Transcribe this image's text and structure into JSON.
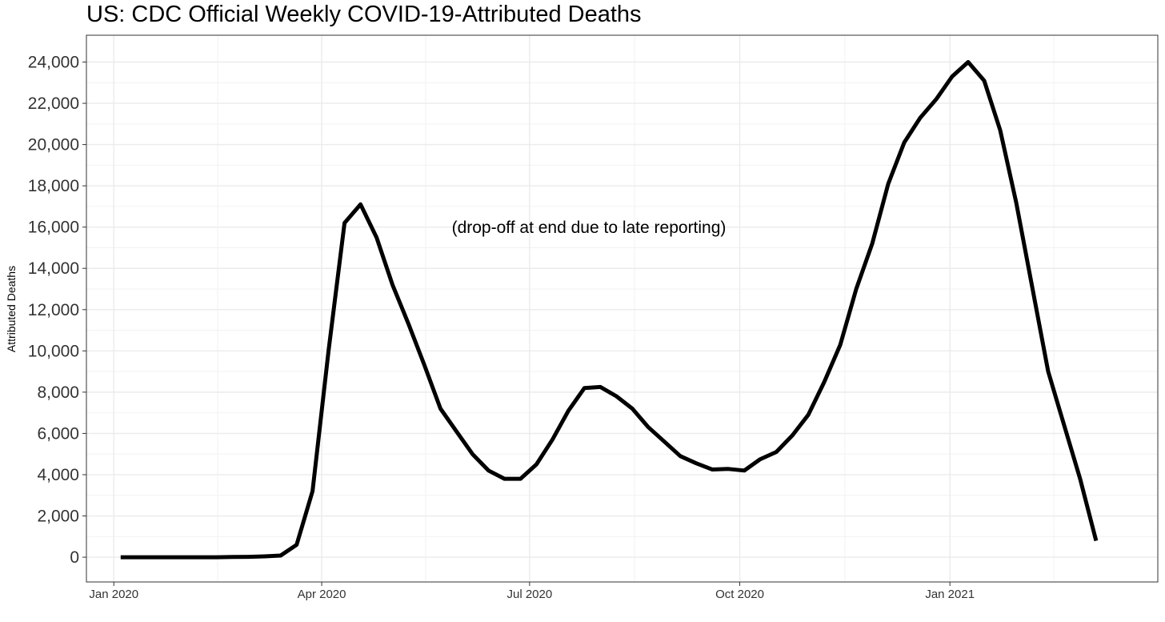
{
  "chart_data": {
    "type": "line",
    "title": "US: CDC Official Weekly COVID-19-Attributed Deaths",
    "xlabel": "",
    "ylabel": "Attributed Deaths",
    "annotation": "(drop-off at end due to late reporting)",
    "ylim": [
      -1200,
      25300
    ],
    "xlim": [
      "2019-12-20",
      "2021-04-02"
    ],
    "yticks": [
      0,
      2000,
      4000,
      6000,
      8000,
      10000,
      12000,
      14000,
      16000,
      18000,
      20000,
      22000,
      24000
    ],
    "ytick_labels": [
      "0",
      "2,000",
      "4,000",
      "6,000",
      "8,000",
      "10,000",
      "12,000",
      "14,000",
      "16,000",
      "18,000",
      "20,000",
      "22,000",
      "24,000"
    ],
    "xticks": [
      "2020-01-01",
      "2020-04-01",
      "2020-07-01",
      "2020-10-01",
      "2021-01-01"
    ],
    "xtick_labels": [
      "Jan 2020",
      "Apr 2020",
      "Jul 2020",
      "Oct 2020",
      "Jan 2021"
    ],
    "grid": true,
    "line_color": "#000000",
    "series": [
      {
        "x": [
          "2020-01-04",
          "2020-01-11",
          "2020-01-18",
          "2020-01-25",
          "2020-02-01",
          "2020-02-08",
          "2020-02-15",
          "2020-02-22",
          "2020-02-29",
          "2020-03-07",
          "2020-03-14",
          "2020-03-21",
          "2020-03-28",
          "2020-04-04",
          "2020-04-11",
          "2020-04-18",
          "2020-04-25",
          "2020-05-02",
          "2020-05-09",
          "2020-05-16",
          "2020-05-23",
          "2020-05-30",
          "2020-06-06",
          "2020-06-13",
          "2020-06-20",
          "2020-06-27",
          "2020-07-04",
          "2020-07-11",
          "2020-07-18",
          "2020-07-25",
          "2020-08-01",
          "2020-08-08",
          "2020-08-15",
          "2020-08-22",
          "2020-08-29",
          "2020-09-05",
          "2020-09-12",
          "2020-09-19",
          "2020-09-26",
          "2020-10-03",
          "2020-10-10",
          "2020-10-17",
          "2020-10-24",
          "2020-10-31",
          "2020-11-07",
          "2020-11-14",
          "2020-11-21",
          "2020-11-28",
          "2020-12-05",
          "2020-12-12",
          "2020-12-19",
          "2020-12-26",
          "2021-01-02",
          "2021-01-09",
          "2021-01-16",
          "2021-01-23",
          "2021-01-30",
          "2021-02-06",
          "2021-02-13",
          "2021-02-20",
          "2021-02-27",
          "2021-03-06"
        ],
        "y": [
          0,
          0,
          0,
          0,
          0,
          0,
          0,
          10,
          20,
          40,
          80,
          600,
          3200,
          10000,
          16200,
          17100,
          15500,
          13200,
          11300,
          9300,
          7200,
          6100,
          5000,
          4200,
          3800,
          3800,
          4500,
          5700,
          7100,
          8200,
          8250,
          7800,
          7200,
          6300,
          5600,
          4900,
          4550,
          4250,
          4280,
          4200,
          4750,
          5100,
          5900,
          6900,
          8500,
          10300,
          13000,
          15200,
          18100,
          20100,
          21300,
          22200,
          23300,
          24000,
          23100,
          20700,
          17200,
          13100,
          9000,
          6400,
          3800,
          800
        ]
      }
    ]
  }
}
